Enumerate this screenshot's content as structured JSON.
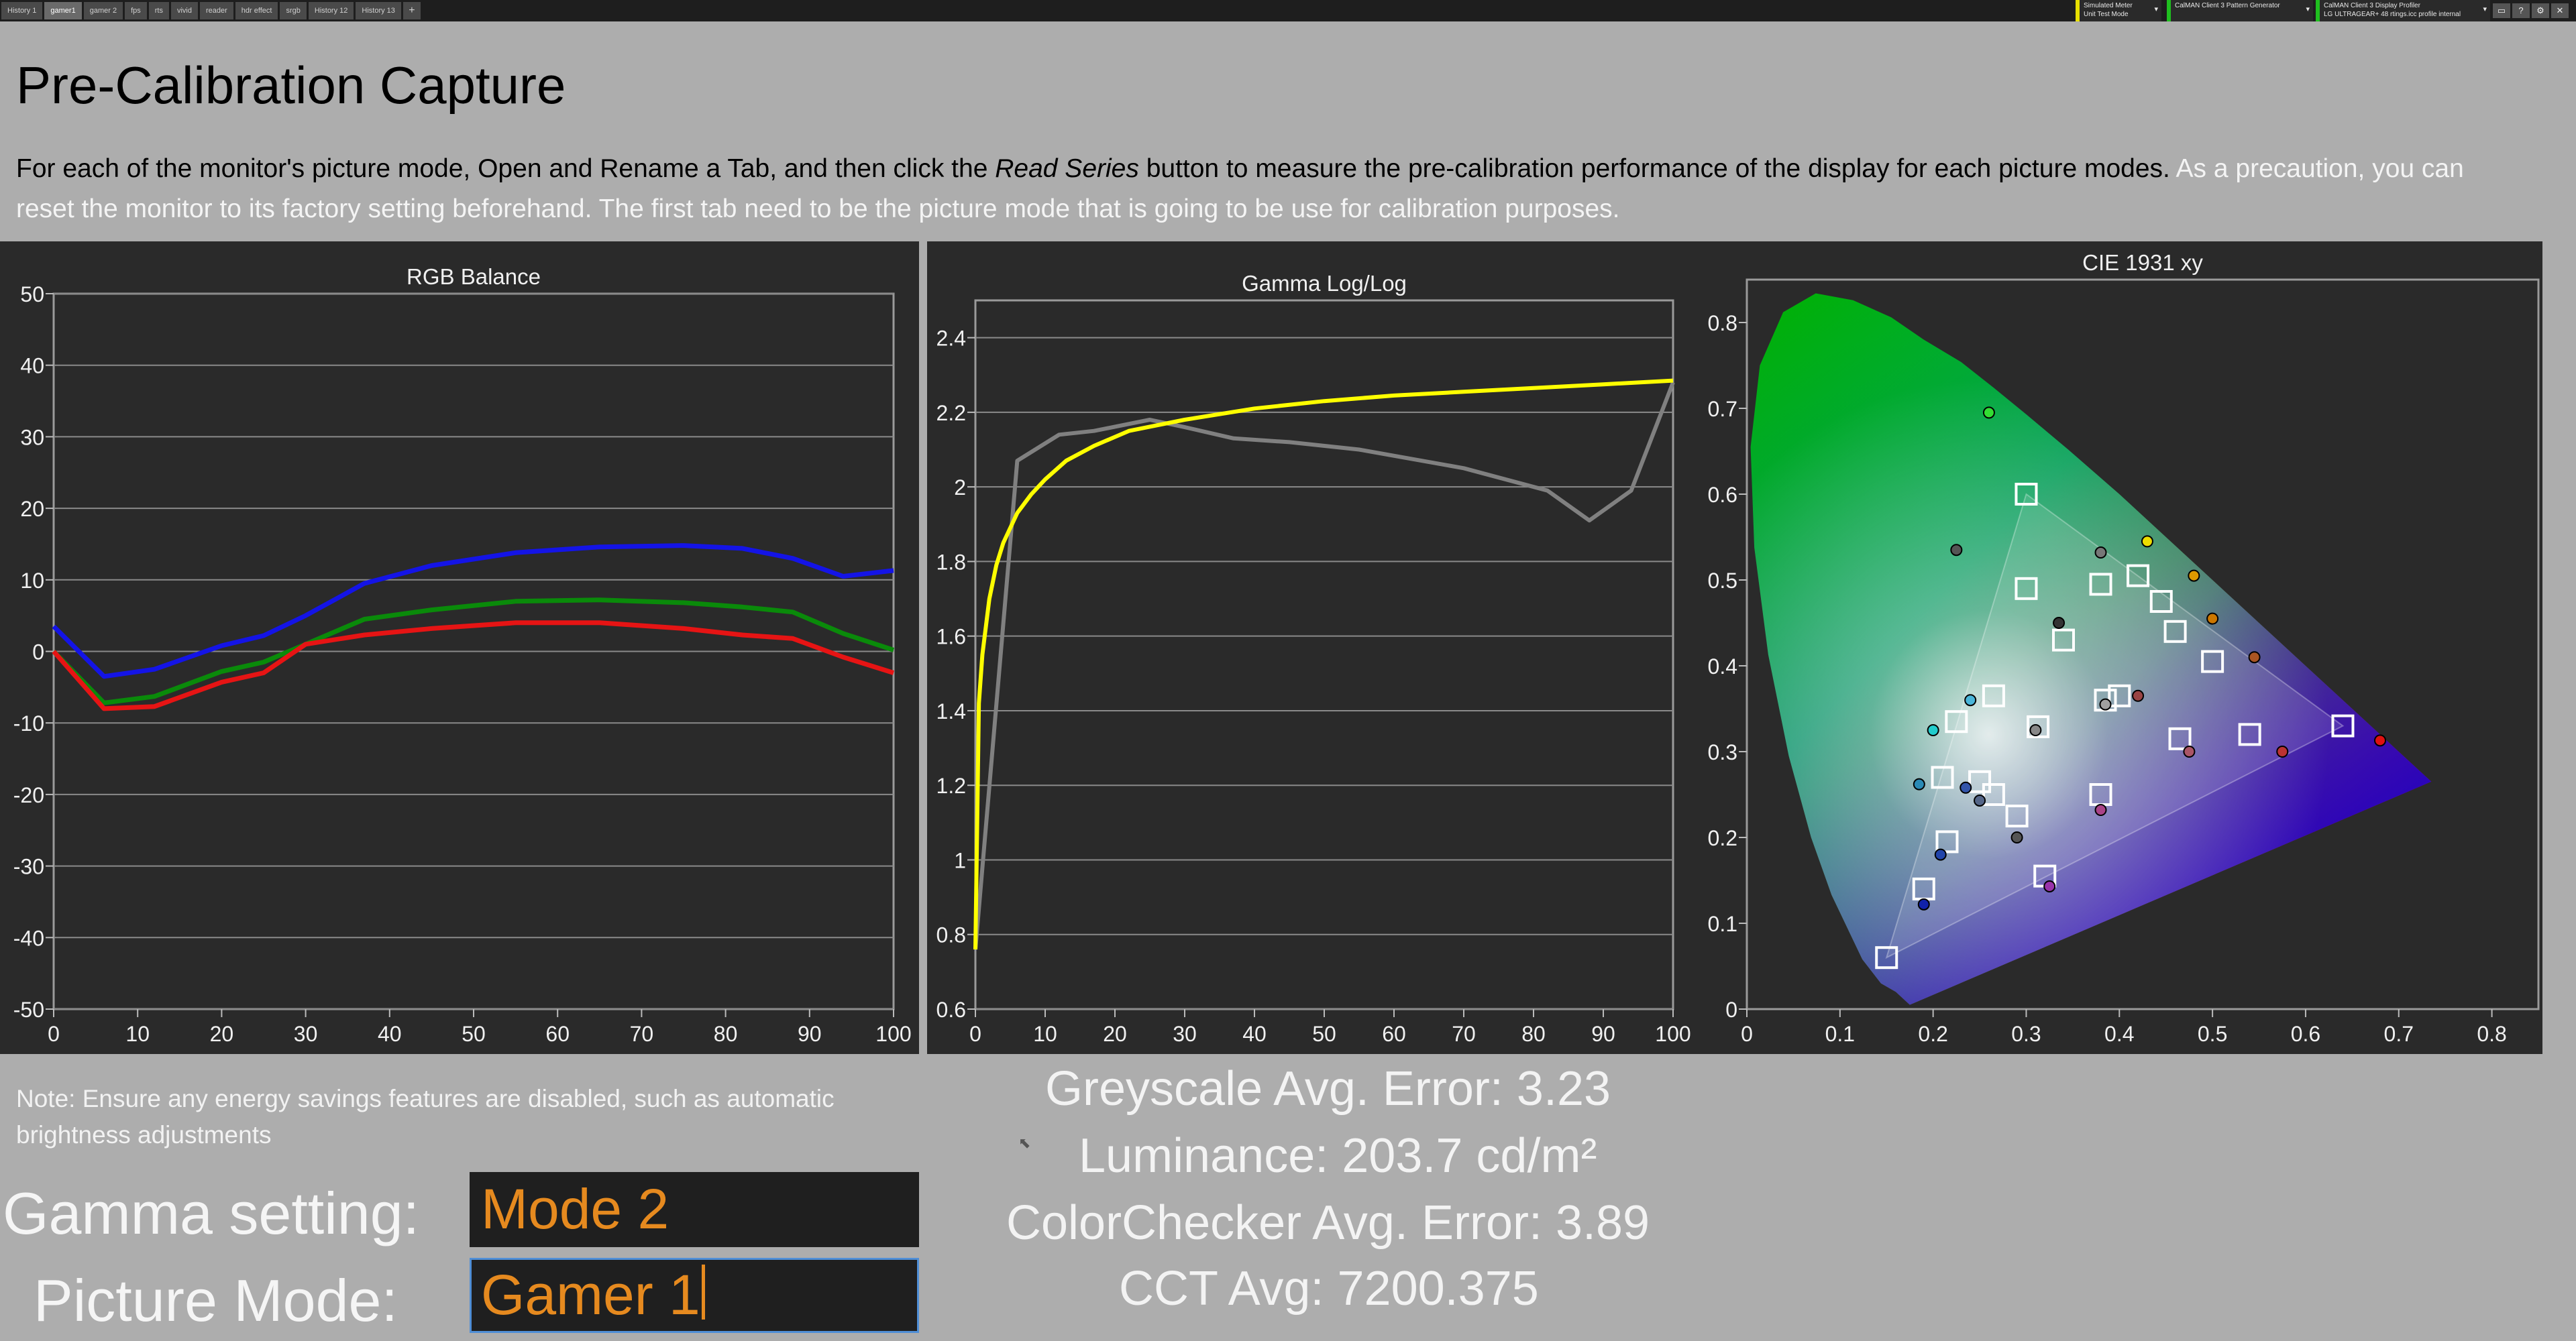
{
  "tabs": [
    {
      "label": "History 1",
      "active": false
    },
    {
      "label": "gamer1",
      "active": true
    },
    {
      "label": "gamer 2",
      "active": false
    },
    {
      "label": "fps",
      "active": false
    },
    {
      "label": "rts",
      "active": false
    },
    {
      "label": "vivid",
      "active": false
    },
    {
      "label": "reader",
      "active": false
    },
    {
      "label": "hdr effect",
      "active": false
    },
    {
      "label": "srgb",
      "active": false
    },
    {
      "label": "History 12",
      "active": false
    },
    {
      "label": "History 13",
      "active": false
    }
  ],
  "add_tab_label": "+",
  "devices": [
    {
      "line1": "Simulated Meter",
      "line2": "Unit Test Mode",
      "color": "#e8e000"
    },
    {
      "line1": "CalMAN Client 3 Pattern Generator",
      "line2": "",
      "color": "#1fc01f"
    },
    {
      "line1": "CalMAN Client 3 Display Profiler",
      "line2": "LG ULTRAGEAR+ 48 rtings.icc profile internal",
      "color": "#1fc01f"
    }
  ],
  "window_buttons": [
    "▭",
    "?",
    "⚙",
    "✕"
  ],
  "page": {
    "title": "Pre-Calibration Capture",
    "intro_a": "For each of the monitor's picture mode, Open and Rename a Tab, and then click the ",
    "intro_em": "Read Series",
    "intro_b": " button to measure the pre-calibration performance of the display for each picture modes. ",
    "intro_soft": "As a precaution, you can reset the monitor to its factory setting beforehand. The first tab need to be the picture mode that is going to be use for calibration purposes.",
    "note": "Note: Ensure any energy savings features are disabled, such as automatic brightness adjustments"
  },
  "settings": {
    "gamma_label": "Gamma setting:",
    "gamma_value": "Mode 2",
    "picture_label": "Picture Mode:",
    "picture_value": "Gamer 1"
  },
  "stats": {
    "greyscale": "Greyscale Avg. Error: 3.23",
    "luminance": "Luminance: 203.7 cd/m²",
    "colorchecker": "ColorChecker Avg. Error: 3.89",
    "cct": "CCT Avg: 7200.375"
  },
  "chart_data": [
    {
      "type": "line",
      "title": "RGB Balance",
      "xlim": [
        0,
        100
      ],
      "ylim": [
        -50,
        50
      ],
      "xticks": [
        0,
        10,
        20,
        30,
        40,
        50,
        60,
        70,
        80,
        90,
        100
      ],
      "yticks": [
        -50,
        -40,
        -30,
        -20,
        -10,
        0,
        10,
        20,
        30,
        40,
        50
      ],
      "grid": true,
      "series": [
        {
          "color": "#1414e6",
          "x": [
            0,
            6,
            12,
            20,
            25,
            30,
            37,
            45,
            55,
            65,
            75,
            82,
            88,
            94,
            100
          ],
          "y": [
            3.5,
            -3.5,
            -2.5,
            0.8,
            2.2,
            5,
            9.5,
            12,
            13.8,
            14.6,
            14.8,
            14.4,
            13,
            10.5,
            11.3
          ]
        },
        {
          "color": "#0a8a0a",
          "x": [
            0,
            6,
            12,
            20,
            25,
            30,
            37,
            45,
            55,
            65,
            75,
            82,
            88,
            94,
            100
          ],
          "y": [
            0,
            -7.2,
            -6.3,
            -2.8,
            -1.5,
            1,
            4.5,
            5.8,
            7,
            7.2,
            6.8,
            6.2,
            5.5,
            2.5,
            0.2
          ]
        },
        {
          "color": "#e61414",
          "x": [
            0,
            6,
            12,
            20,
            25,
            30,
            37,
            45,
            55,
            65,
            75,
            82,
            88,
            94,
            100
          ],
          "y": [
            0,
            -8,
            -7.7,
            -4.3,
            -3,
            1,
            2.3,
            3.2,
            4,
            4,
            3.2,
            2.3,
            1.8,
            -0.8,
            -3
          ]
        }
      ]
    },
    {
      "type": "line",
      "title": "Gamma Log/Log",
      "xlim": [
        0,
        100
      ],
      "ylim": [
        0.6,
        2.5
      ],
      "xticks": [
        0,
        10,
        20,
        30,
        40,
        50,
        60,
        70,
        80,
        90,
        100
      ],
      "yticks": [
        0.6,
        0.8,
        1,
        1.2,
        1.4,
        1.6,
        1.8,
        2,
        2.2,
        2.4
      ],
      "grid": true,
      "series": [
        {
          "color": "#808080",
          "x": [
            0,
            6,
            12,
            17,
            25,
            30,
            37,
            45,
            55,
            70,
            82,
            88,
            94,
            100
          ],
          "y": [
            0.76,
            2.07,
            2.14,
            2.15,
            2.18,
            2.16,
            2.13,
            2.12,
            2.1,
            2.05,
            1.99,
            1.91,
            1.99,
            2.28
          ]
        },
        {
          "color": "#ffff00",
          "x": [
            0,
            0.5,
            1,
            2,
            3,
            4,
            6,
            8,
            10,
            13,
            17,
            22,
            30,
            40,
            50,
            60,
            70,
            80,
            90,
            100
          ],
          "y": [
            0.76,
            1.42,
            1.55,
            1.7,
            1.79,
            1.85,
            1.93,
            1.98,
            2.02,
            2.07,
            2.11,
            2.15,
            2.18,
            2.21,
            2.23,
            2.245,
            2.255,
            2.265,
            2.275,
            2.285
          ]
        }
      ]
    },
    {
      "type": "scatter",
      "title": "CIE 1931 xy",
      "xlim": [
        0,
        0.85
      ],
      "ylim": [
        0,
        0.85
      ],
      "xticks": [
        0,
        0.1,
        0.2,
        0.3,
        0.4,
        0.5,
        0.6,
        0.7,
        0.8
      ],
      "yticks": [
        0,
        0.1,
        0.2,
        0.3,
        0.4,
        0.5,
        0.6,
        0.7,
        0.8
      ],
      "gamut": [
        [
          0.64,
          0.33
        ],
        [
          0.3,
          0.6
        ],
        [
          0.15,
          0.06
        ]
      ],
      "targets": [
        [
          0.3,
          0.6
        ],
        [
          0.15,
          0.06
        ],
        [
          0.64,
          0.33
        ],
        [
          0.3127,
          0.329
        ],
        [
          0.3,
          0.49
        ],
        [
          0.38,
          0.495
        ],
        [
          0.42,
          0.505
        ],
        [
          0.445,
          0.475
        ],
        [
          0.46,
          0.44
        ],
        [
          0.5,
          0.405
        ],
        [
          0.34,
          0.43
        ],
        [
          0.265,
          0.365
        ],
        [
          0.225,
          0.335
        ],
        [
          0.21,
          0.27
        ],
        [
          0.25,
          0.265
        ],
        [
          0.265,
          0.25
        ],
        [
          0.29,
          0.225
        ],
        [
          0.38,
          0.25
        ],
        [
          0.215,
          0.195
        ],
        [
          0.19,
          0.14
        ],
        [
          0.32,
          0.155
        ],
        [
          0.4,
          0.365
        ],
        [
          0.385,
          0.36
        ],
        [
          0.465,
          0.315
        ],
        [
          0.54,
          0.32
        ]
      ],
      "measured": [
        {
          "x": 0.26,
          "y": 0.695,
          "c": "#33dd33"
        },
        {
          "x": 0.68,
          "y": 0.313,
          "c": "#e01010"
        },
        {
          "x": 0.225,
          "y": 0.535,
          "c": "#555555"
        },
        {
          "x": 0.38,
          "y": 0.532,
          "c": "#777777"
        },
        {
          "x": 0.43,
          "y": 0.545,
          "c": "#eedd00"
        },
        {
          "x": 0.48,
          "y": 0.505,
          "c": "#dd9900"
        },
        {
          "x": 0.5,
          "y": 0.455,
          "c": "#cc7700"
        },
        {
          "x": 0.545,
          "y": 0.41,
          "c": "#aa5522"
        },
        {
          "x": 0.335,
          "y": 0.45,
          "c": "#333333"
        },
        {
          "x": 0.24,
          "y": 0.36,
          "c": "#4ab5d9"
        },
        {
          "x": 0.2,
          "y": 0.325,
          "c": "#22cccc"
        },
        {
          "x": 0.31,
          "y": 0.325,
          "c": "#888888"
        },
        {
          "x": 0.385,
          "y": 0.355,
          "c": "#a0a0a0"
        },
        {
          "x": 0.42,
          "y": 0.365,
          "c": "#994444"
        },
        {
          "x": 0.185,
          "y": 0.262,
          "c": "#2a8ab5"
        },
        {
          "x": 0.235,
          "y": 0.258,
          "c": "#3355aa"
        },
        {
          "x": 0.25,
          "y": 0.243,
          "c": "#556688"
        },
        {
          "x": 0.29,
          "y": 0.2,
          "c": "#555555"
        },
        {
          "x": 0.208,
          "y": 0.18,
          "c": "#2244aa"
        },
        {
          "x": 0.19,
          "y": 0.122,
          "c": "#1122aa"
        },
        {
          "x": 0.38,
          "y": 0.232,
          "c": "#aa4488"
        },
        {
          "x": 0.325,
          "y": 0.143,
          "c": "#9933aa"
        },
        {
          "x": 0.475,
          "y": 0.3,
          "c": "#aa5566"
        },
        {
          "x": 0.575,
          "y": 0.3,
          "c": "#bb3333"
        }
      ]
    }
  ]
}
